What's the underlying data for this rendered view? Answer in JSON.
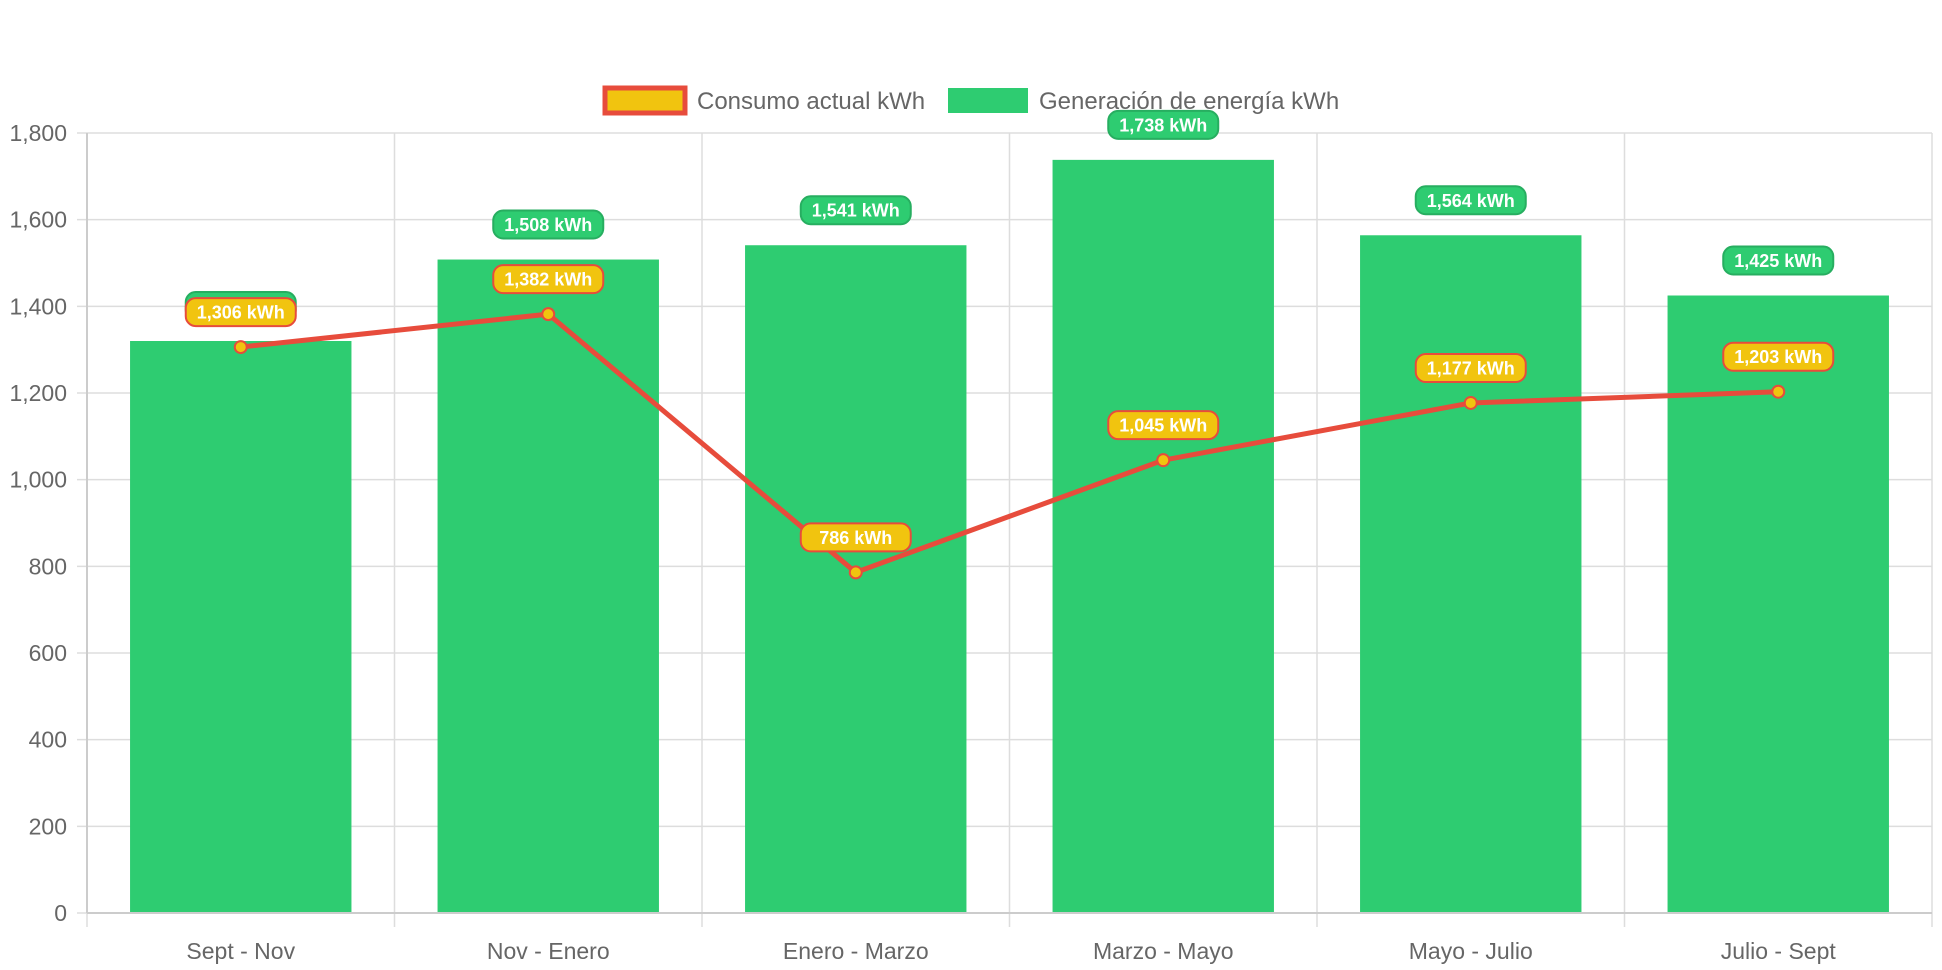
{
  "chart_data": {
    "type": "bar",
    "categories": [
      "Sept - Nov",
      "Nov - Enero",
      "Enero - Marzo",
      "Marzo - Mayo",
      "Mayo - Julio",
      "Julio - Sept"
    ],
    "series": [
      {
        "name": "Consumo actual kWh",
        "type": "line",
        "values": [
          1306,
          1382,
          786,
          1045,
          1177,
          1203
        ],
        "labels": [
          "1,306 kWh",
          "1,382 kWh",
          "786 kWh",
          "1,045 kWh",
          "1,177 kWh",
          "1,203 kWh"
        ],
        "color": "#e74c3c",
        "fill_color": "#f1c40f"
      },
      {
        "name": "Generación de energía kWh",
        "type": "bar",
        "values": [
          1320,
          1508,
          1541,
          1738,
          1564,
          1425
        ],
        "labels": [
          "",
          "1,508 kWh",
          "1,541 kWh",
          "1,738 kWh",
          "1,564 kWh",
          "1,425 kWh"
        ],
        "color": "#2ecc71"
      }
    ],
    "title": "",
    "xlabel": "",
    "ylabel": "",
    "ylim": [
      0,
      1800
    ],
    "y_ticks": [
      0,
      200,
      400,
      600,
      800,
      1000,
      1200,
      1400,
      1600,
      1800
    ],
    "y_tick_labels": [
      "0",
      "200",
      "400",
      "600",
      "800",
      "1,000",
      "1,200",
      "1,400",
      "1,600",
      "1,800"
    ],
    "grid": true,
    "legend_position": "top-center"
  }
}
